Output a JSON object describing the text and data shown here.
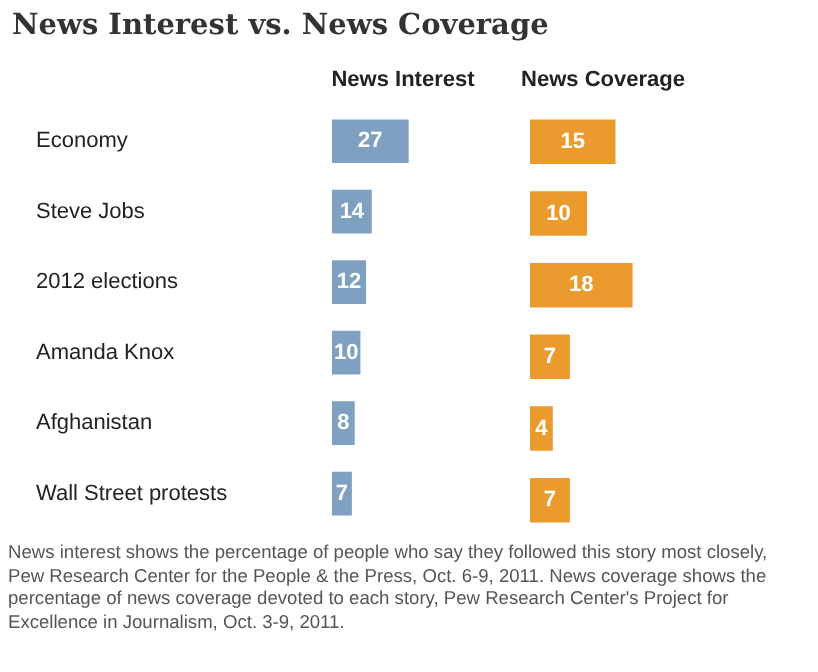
{
  "chart_data": [
    {
      "type": "other",
      "title": "News Interest vs. News Coverage",
      "annotations": [
        "News interest shows the percentage of people who say they followed this story most closely, Pew Research Center for the People & the Press, Oct. 6-9, 2011. News coverage shows the percentage of news coverage devoted to each story, Pew Research Center's Project for Excellence in Journalism, Oct. 3-9, 2011."
      ]
    },
    {
      "type": "bar",
      "orientation": "horizontal",
      "title": "News Interest",
      "categories": [
        "Economy",
        "Steve Jobs",
        "2012 elections",
        "Amanda Knox",
        "Afghanistan",
        "Wall Street protests"
      ],
      "values": [
        27,
        14,
        12,
        10,
        8,
        7
      ],
      "color": "#7ea1c1",
      "data_labels": true
    },
    {
      "type": "bar",
      "orientation": "horizontal",
      "title": "News Coverage",
      "categories": [
        null,
        null,
        null,
        null,
        null,
        null
      ],
      "values": [
        15,
        10,
        18,
        7,
        4,
        7
      ],
      "color": "#eb9b2e",
      "data_labels": true,
      "tick_labels": false
    }
  ]
}
